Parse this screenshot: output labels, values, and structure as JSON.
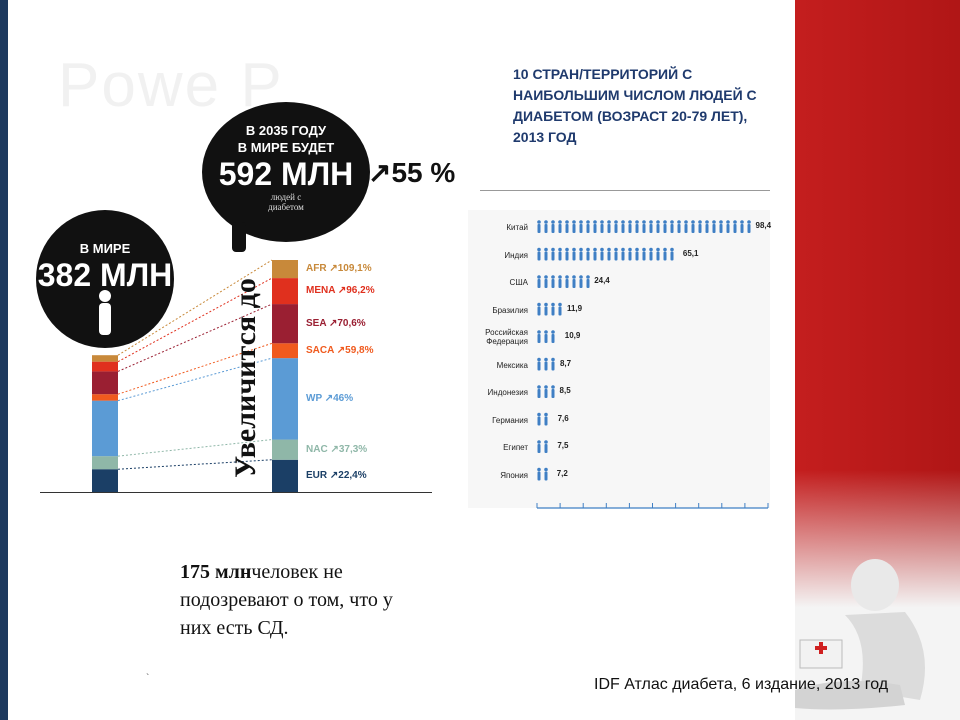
{
  "colors": {
    "accent_red": "#c41e1e",
    "title_blue": "#1f3a6d",
    "AFR": "#c8893a",
    "MENA": "#e0301e",
    "SEA": "#9a1f32",
    "SACA": "#f05a1e",
    "WP": "#5b9bd5",
    "NAC": "#8fb7a8",
    "EUR": "#1b3f66",
    "country_bar": "#3f7fc4"
  },
  "ghost_title": "Powe P",
  "bubble_2013": {
    "line1": "В МИРЕ",
    "value": "382 МЛН"
  },
  "bubble_2035": {
    "line1": "В 2035 ГОДУ",
    "line2": "В МИРЕ БУДЕТ",
    "value": "592 МЛН",
    "sub1": "людей с",
    "sub2": "диабетом"
  },
  "increase_total": "↗55 %",
  "vertical_word": "Увеличится до",
  "footnote": {
    "bold": "175 млн",
    "text": "человек не подозревают о том, что у них есть СД."
  },
  "stray_mark": "`",
  "source": "IDF Атлас диабета, 6 издание, 2013 год",
  "chart_data": [
    {
      "type": "bar",
      "subtype": "stacked-columns",
      "categories": [
        "2013",
        "2035"
      ],
      "series": [
        {
          "name": "AFR",
          "growth": "↗109,1%",
          "shares": [
            0.043,
            0.078
          ]
        },
        {
          "name": "MENA",
          "growth": "↗96,2%",
          "shares": [
            0.065,
            0.112
          ]
        },
        {
          "name": "SEA",
          "growth": "↗70,6%",
          "shares": [
            0.152,
            0.169
          ]
        },
        {
          "name": "SACA",
          "growth": "↗59,8%",
          "shares": [
            0.043,
            0.064
          ]
        },
        {
          "name": "WP",
          "growth": "↗46%",
          "shares": [
            0.37,
            0.351
          ]
        },
        {
          "name": "NAC",
          "growth": "↗37,3%",
          "shares": [
            0.087,
            0.087
          ]
        },
        {
          "name": "EUR",
          "growth": "↗22,4%",
          "shares": [
            0.152,
            0.139
          ]
        }
      ]
    },
    {
      "type": "bar",
      "orientation": "horizontal",
      "title": "10 СТРАН/ТЕРРИТОРИЙ С НАИБОЛЬШИМ ЧИСЛОМ ЛЮДЕЙ С ДИАБЕТОМ (ВОЗРАСТ 20-79 ЛЕТ), 2013 ГОД",
      "categories": [
        "Китай",
        "Индия",
        "США",
        "Бразилия",
        "Российская Федерация",
        "Мексика",
        "Индонезия",
        "Германия",
        "Египет",
        "Япония"
      ],
      "values": [
        98.4,
        65.1,
        24.4,
        11.9,
        10.9,
        8.7,
        8.5,
        7.6,
        7.5,
        7.2
      ],
      "value_labels": [
        "98,4",
        "65,1",
        "24,4",
        "11,9",
        "10,9",
        "8,7",
        "8,5",
        "7,6",
        "7,5",
        "7,2"
      ],
      "xlim": [
        0,
        100
      ]
    }
  ]
}
